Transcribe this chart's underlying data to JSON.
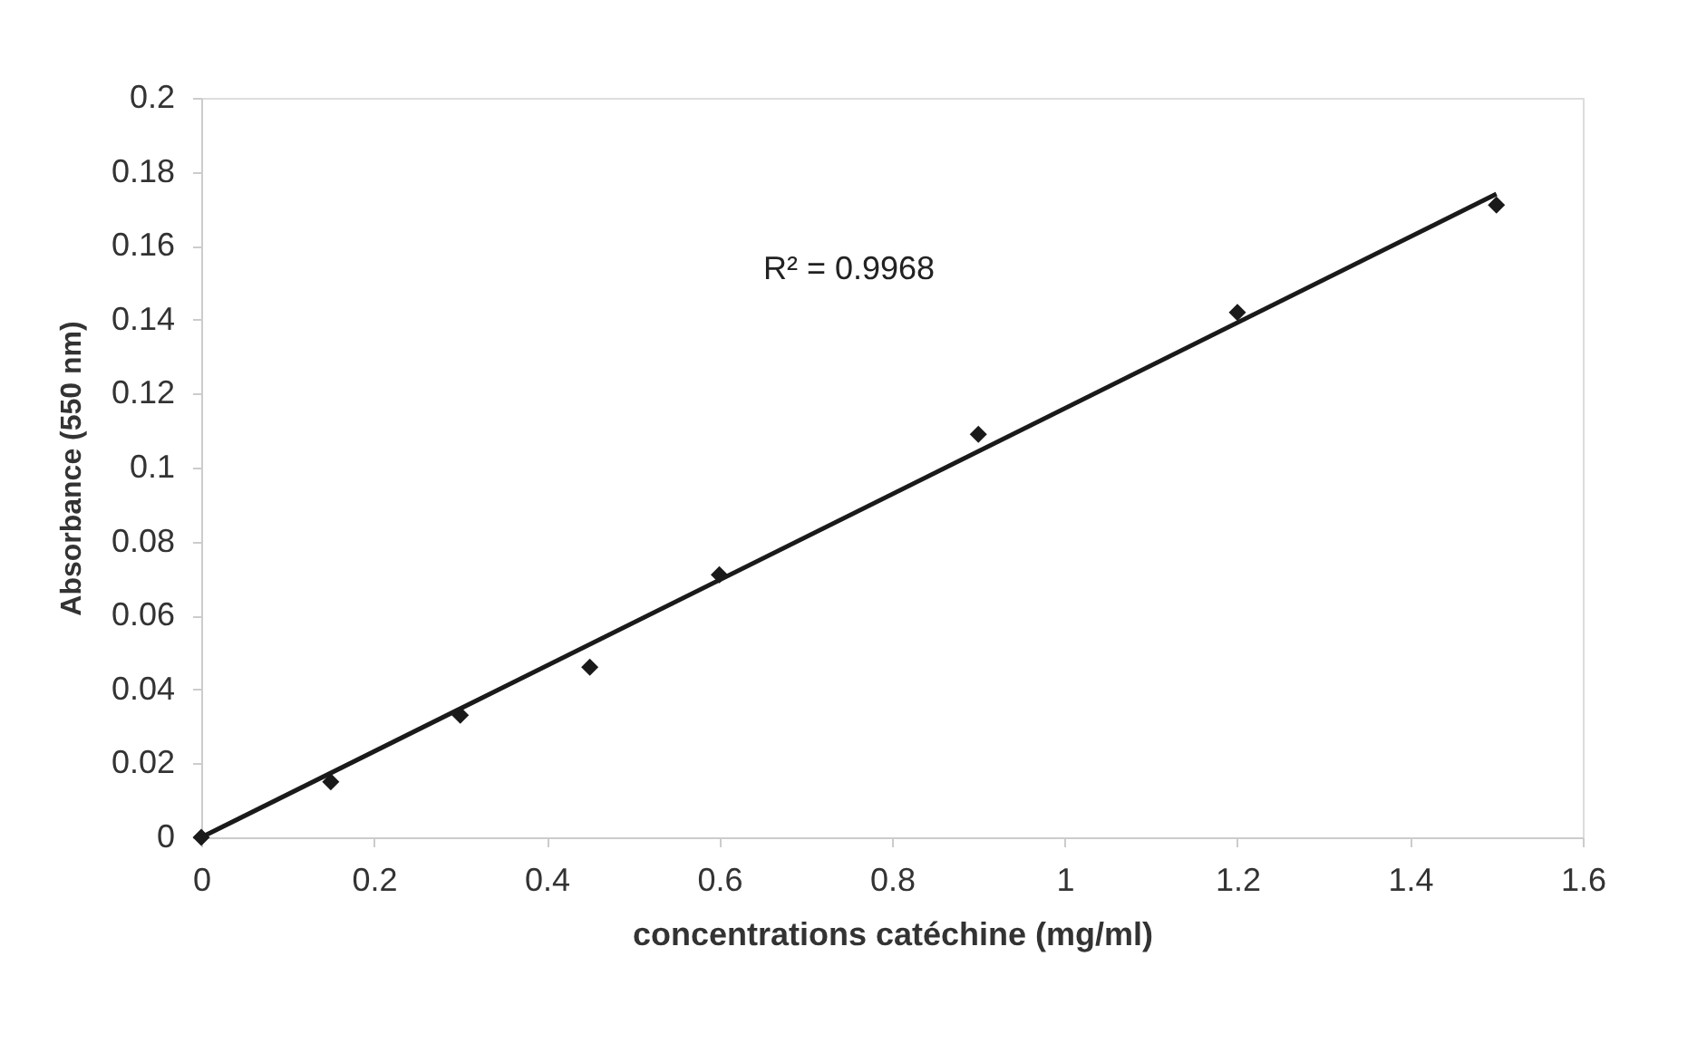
{
  "chart_data": {
    "type": "scatter",
    "xlabel": "concentrations catéchine (mg/ml)",
    "ylabel": "Absorbance (550 nm)",
    "x": [
      0,
      0.15,
      0.3,
      0.45,
      0.6,
      0.9,
      1.2,
      1.5
    ],
    "series": [
      {
        "color": "#1a1a1a",
        "values": [
          0,
          0.015,
          0.033,
          0.046,
          0.071,
          0.109,
          0.142,
          0.171
        ],
        "marker": "diamond"
      },
      {
        "type": "line",
        "color": "#1a1a1a",
        "x": [
          0,
          1.5
        ],
        "values": [
          0,
          0.174
        ],
        "line_style": "solid"
      }
    ],
    "annotations": [
      "R² = 0.9968"
    ],
    "xlim": [
      0,
      1.6
    ],
    "xticks": [
      0,
      0.2,
      0.4,
      0.6,
      0.8,
      1,
      1.2,
      1.4,
      1.6
    ],
    "ylim": [
      0,
      0.2
    ],
    "yticks": [
      0,
      0.02,
      0.04,
      0.06,
      0.08,
      0.1,
      0.12,
      0.14,
      0.16,
      0.18,
      0.2
    ],
    "grid": false
  }
}
